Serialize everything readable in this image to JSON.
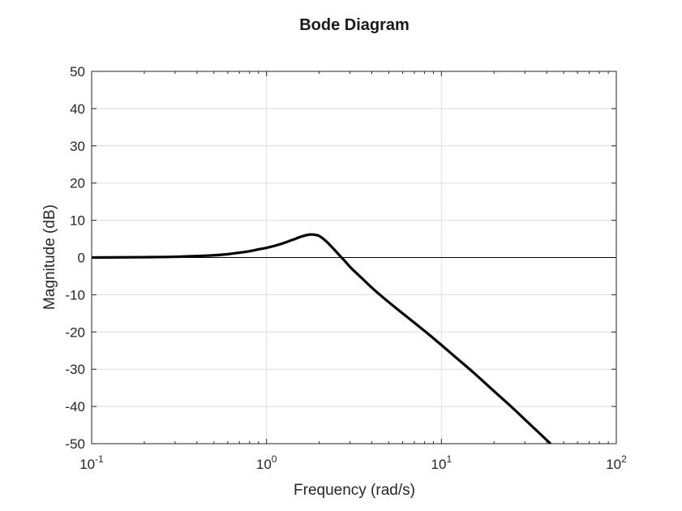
{
  "chart_data": {
    "type": "line",
    "title": "Bode Diagram",
    "xlabel": "Frequency (rad/s)",
    "ylabel": "Magnitude (dB)",
    "xscale": "log",
    "xlim": [
      0.1,
      100
    ],
    "ylim": [
      -50,
      50
    ],
    "x_ticks": [
      {
        "value": 0.1,
        "base": "10",
        "exponent": "-1"
      },
      {
        "value": 1,
        "base": "10",
        "exponent": "0"
      },
      {
        "value": 10,
        "base": "10",
        "exponent": "1"
      },
      {
        "value": 100,
        "base": "10",
        "exponent": "2"
      }
    ],
    "y_ticks": [
      {
        "value": 50,
        "label": "50"
      },
      {
        "value": 40,
        "label": "40"
      },
      {
        "value": 30,
        "label": "30"
      },
      {
        "value": 20,
        "label": "20"
      },
      {
        "value": 10,
        "label": "10"
      },
      {
        "value": 0,
        "label": "0"
      },
      {
        "value": -10,
        "label": "-10"
      },
      {
        "value": -20,
        "label": "-20"
      },
      {
        "value": -30,
        "label": "-30"
      },
      {
        "value": -40,
        "label": "-40"
      },
      {
        "value": -50,
        "label": "-50"
      }
    ],
    "grid": true,
    "reference_line_y": 0,
    "series": [
      {
        "color": "#000000",
        "x": [
          0.1,
          0.2,
          0.3,
          0.4,
          0.5,
          0.6,
          0.7,
          0.8,
          0.9,
          1.0,
          1.2,
          1.4,
          1.6,
          1.8,
          1.9,
          2.0,
          2.2,
          2.4,
          2.6,
          2.8,
          3.0,
          3.5,
          4.0,
          5.0,
          6.0,
          7.0,
          8.0,
          10.0,
          12.0,
          15.0,
          20.0,
          25.0,
          30.0,
          36.0
        ],
        "y": [
          0.0,
          0.1,
          0.2,
          0.4,
          0.6,
          0.9,
          1.3,
          1.7,
          2.2,
          2.6,
          3.6,
          4.7,
          5.7,
          6.2,
          6.1,
          5.8,
          4.3,
          2.5,
          0.7,
          -0.9,
          -2.5,
          -5.5,
          -8.1,
          -12.0,
          -15.0,
          -17.5,
          -19.7,
          -23.5,
          -26.7,
          -30.6,
          -35.9,
          -40.0,
          -43.5,
          -47.0
        ]
      }
    ]
  }
}
